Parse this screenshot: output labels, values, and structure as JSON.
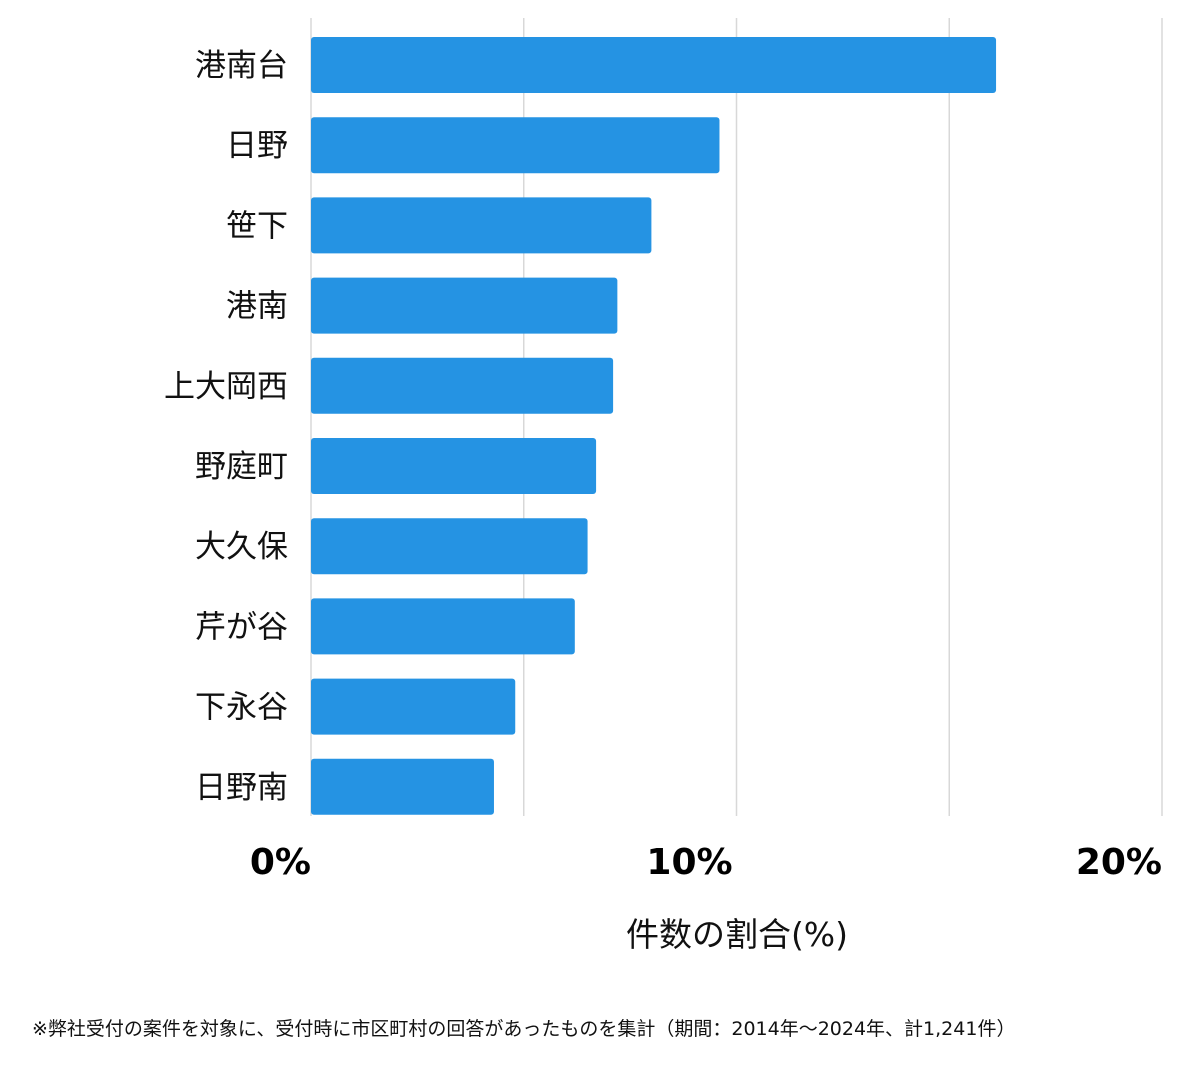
{
  "chart_data": {
    "type": "bar",
    "orientation": "horizontal",
    "categories": [
      "港南台",
      "日野",
      "笹下",
      "港南",
      "上大岡西",
      "野庭町",
      "大久保",
      "芹が谷",
      "下永谷",
      "日野南"
    ],
    "values": [
      16.1,
      9.6,
      8.0,
      7.2,
      7.1,
      6.7,
      6.5,
      6.2,
      4.8,
      4.3
    ],
    "xlabel": "件数の割合(%)",
    "xlim": [
      0,
      20
    ],
    "x_tick_labels": [
      {
        "value": 0,
        "label": "0%"
      },
      {
        "value": 10,
        "label": "10%"
      },
      {
        "value": 20,
        "label": "20%"
      }
    ],
    "gridlines": [
      0,
      5,
      10,
      15,
      20
    ],
    "grid": true,
    "bar_color": "#2593e3"
  },
  "footnote": "※弊社受付の案件を対象に、受付時に市区町村の回答があったものを集計（期間：2014年〜2024年、計1,241件）"
}
